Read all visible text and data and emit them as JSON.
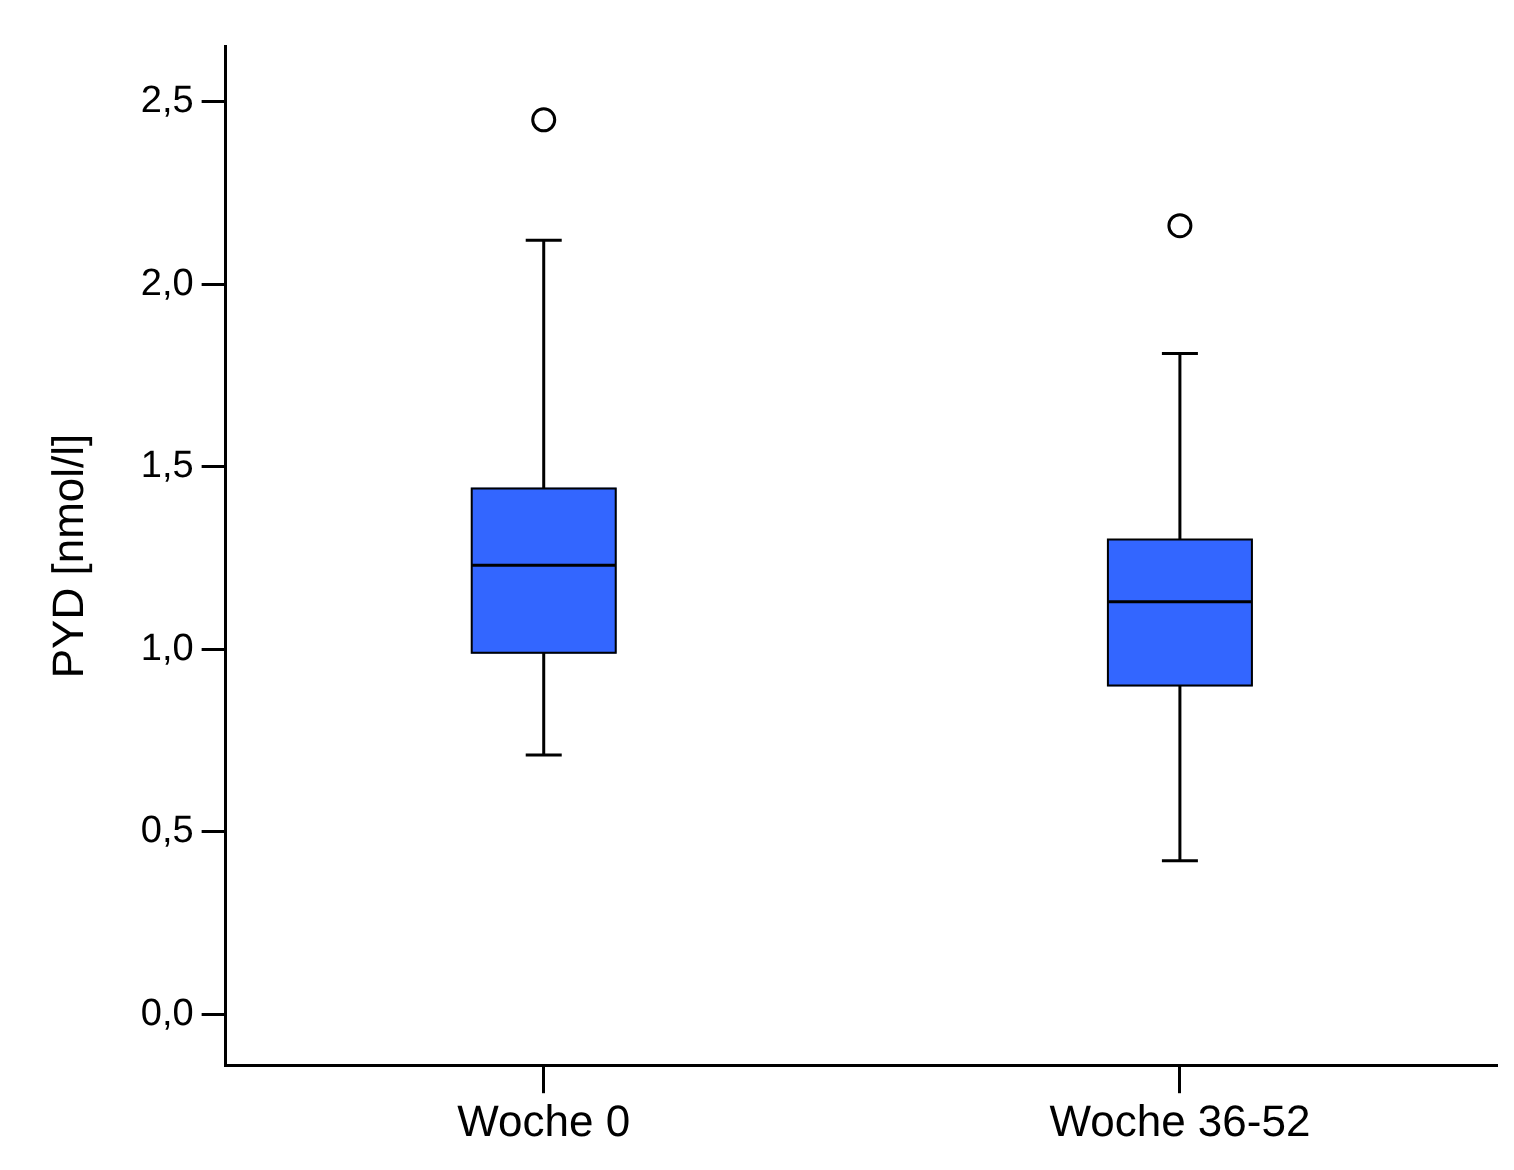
{
  "chart_data": {
    "type": "box",
    "ylabel": "PYD [nmol/l]",
    "categories": [
      "Woche 0",
      "Woche 36-52"
    ],
    "color": "#3366ff",
    "boxes": [
      {
        "low": 0.71,
        "q1": 0.99,
        "median": 1.23,
        "q3": 1.44,
        "high": 2.12,
        "outliers": [
          2.45
        ]
      },
      {
        "low": 0.42,
        "q1": 0.9,
        "median": 1.13,
        "q3": 1.3,
        "high": 1.81,
        "outliers": [
          2.16
        ]
      }
    ],
    "ylim": [
      -0.14,
      2.65
    ],
    "yticks": [
      {
        "value": 0,
        "label": "0,0"
      },
      {
        "value": 0.5,
        "label": "0,5"
      },
      {
        "value": 1,
        "label": "1,0"
      },
      {
        "value": 1.5,
        "label": "1,5"
      },
      {
        "value": 2,
        "label": "2,0"
      },
      {
        "value": 2.5,
        "label": "2,5"
      }
    ],
    "grid": false,
    "legend": false
  }
}
